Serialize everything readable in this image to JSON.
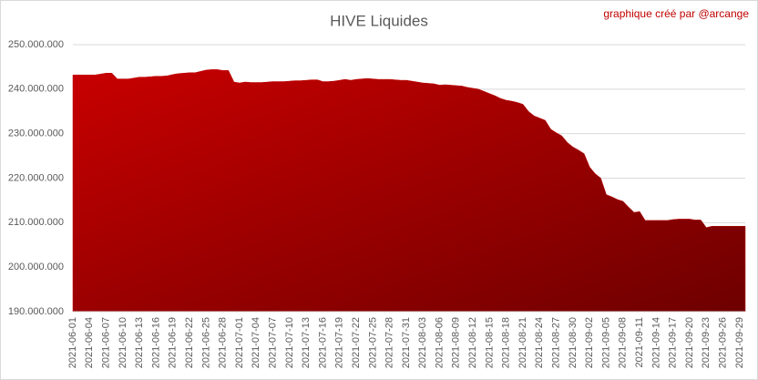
{
  "chart_data": {
    "type": "area",
    "title": "HIVE Liquides",
    "annotation": "graphique créé par @arcange",
    "categories": [
      "2021-06-01",
      null,
      null,
      "2021-06-04",
      null,
      null,
      "2021-06-07",
      null,
      null,
      "2021-06-10",
      null,
      null,
      "2021-06-13",
      null,
      null,
      "2021-06-16",
      null,
      null,
      "2021-06-19",
      null,
      null,
      "2021-06-22",
      null,
      null,
      "2021-06-25",
      null,
      null,
      "2021-06-28",
      null,
      null,
      "2021-07-01",
      null,
      null,
      "2021-07-04",
      null,
      null,
      "2021-07-07",
      null,
      null,
      "2021-07-10",
      null,
      null,
      "2021-07-13",
      null,
      null,
      "2021-07-16",
      null,
      null,
      "2021-07-19",
      null,
      null,
      "2021-07-22",
      null,
      null,
      "2021-07-25",
      null,
      null,
      "2021-07-28",
      null,
      null,
      "2021-07-31",
      null,
      null,
      "2021-08-03",
      null,
      null,
      "2021-08-06",
      null,
      null,
      "2021-08-09",
      null,
      null,
      "2021-08-12",
      null,
      null,
      "2021-08-15",
      null,
      null,
      "2021-08-18",
      null,
      null,
      "2021-08-21",
      null,
      null,
      "2021-08-24",
      null,
      null,
      "2021-08-27",
      null,
      null,
      "2021-08-30",
      null,
      null,
      "2021-09-02",
      null,
      null,
      "2021-09-05",
      null,
      null,
      "2021-09-08",
      null,
      null,
      "2021-09-11",
      null,
      null,
      "2021-09-14",
      null,
      null,
      "2021-09-17",
      null,
      null,
      "2021-09-20",
      null,
      null,
      "2021-09-23",
      null,
      null,
      "2021-09-26",
      null,
      null,
      "2021-09-29",
      null
    ],
    "values": [
      243200000,
      243200000,
      243200000,
      243200000,
      243200000,
      243400000,
      243600000,
      243600000,
      242300000,
      242300000,
      242300000,
      242500000,
      242700000,
      242700000,
      242800000,
      242900000,
      242900000,
      243000000,
      243300000,
      243500000,
      243600000,
      243700000,
      243700000,
      244000000,
      244300000,
      244400000,
      244400000,
      244200000,
      244200000,
      241600000,
      241400000,
      241600000,
      241500000,
      241500000,
      241500000,
      241600000,
      241700000,
      241700000,
      241700000,
      241800000,
      241900000,
      241900000,
      242000000,
      242100000,
      242100000,
      241700000,
      241700000,
      241800000,
      242000000,
      242200000,
      242000000,
      242200000,
      242300000,
      242400000,
      242300000,
      242200000,
      242200000,
      242200000,
      242100000,
      242000000,
      242000000,
      241800000,
      241600000,
      241400000,
      241300000,
      241200000,
      240900000,
      241000000,
      240900000,
      240800000,
      240700000,
      240400000,
      240200000,
      240000000,
      239500000,
      239000000,
      238500000,
      237900000,
      237500000,
      237300000,
      237000000,
      236600000,
      235000000,
      234000000,
      233500000,
      233000000,
      231000000,
      230200000,
      229500000,
      228000000,
      227000000,
      226300000,
      225500000,
      222500000,
      221000000,
      220000000,
      216300000,
      215800000,
      215200000,
      214800000,
      213500000,
      212300000,
      212500000,
      210500000,
      210500000,
      210500000,
      210500000,
      210500000,
      210700000,
      210800000,
      210800000,
      210800000,
      210600000,
      210600000,
      208900000,
      209200000,
      209200000,
      209200000,
      209200000,
      209200000,
      209200000,
      209200000
    ],
    "color": "#c00000",
    "ylim": [
      190000000,
      250000000
    ],
    "yticks": [
      {
        "value": 190000000,
        "label": "190.000.000"
      },
      {
        "value": 200000000,
        "label": "200.000.000"
      },
      {
        "value": 210000000,
        "label": "210.000.000"
      },
      {
        "value": 220000000,
        "label": "220.000.000"
      },
      {
        "value": 230000000,
        "label": "230.000.000"
      },
      {
        "value": 240000000,
        "label": "240.000.000"
      },
      {
        "value": 250000000,
        "label": "250.000.000"
      }
    ],
    "grid": true
  }
}
